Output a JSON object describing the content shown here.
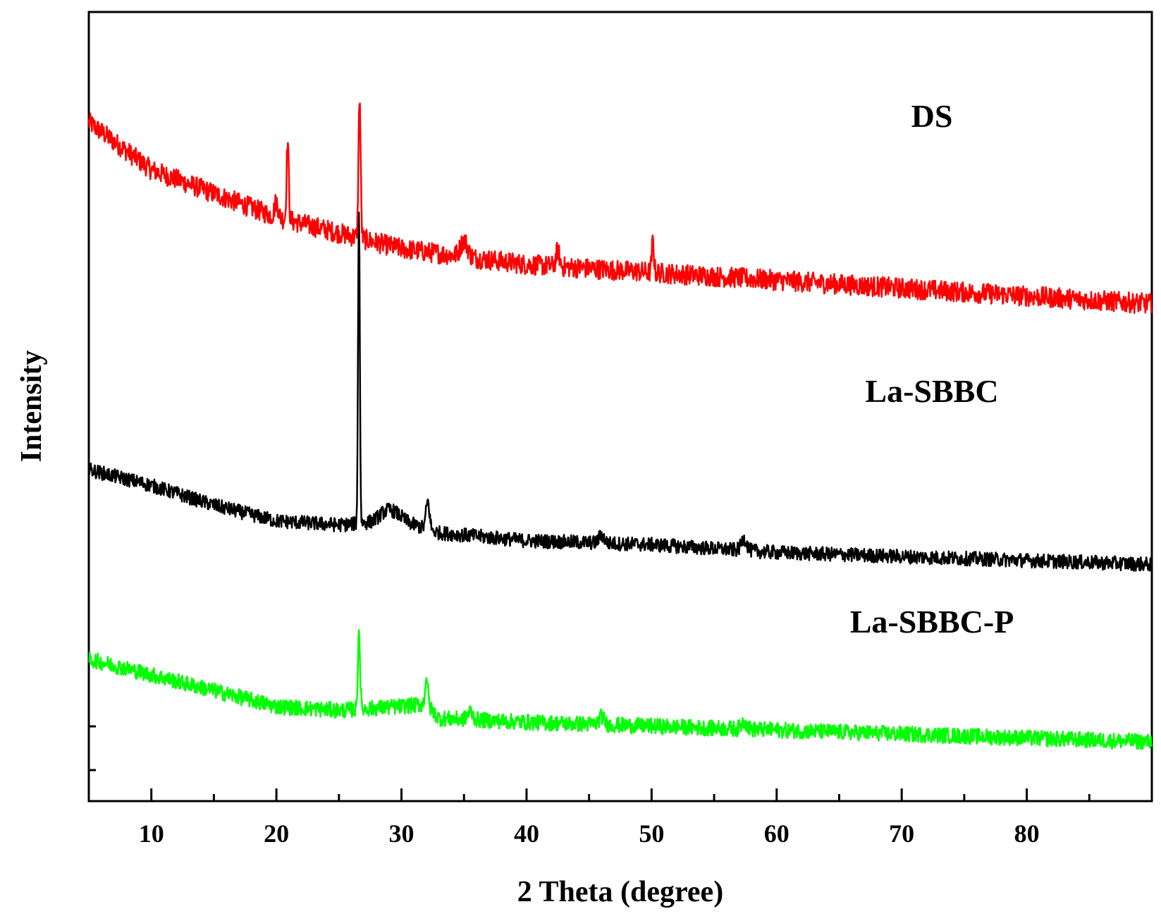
{
  "chart_data": {
    "type": "line",
    "title": "",
    "xlabel": "2 Theta (degree)",
    "ylabel": "Intensity",
    "xlim": [
      5,
      90
    ],
    "x_ticks": [
      10,
      20,
      30,
      40,
      50,
      60,
      70,
      80
    ],
    "x_tick_labels": [
      "10",
      "20",
      "30",
      "40",
      "50",
      "60",
      "70",
      "80"
    ],
    "y_ticks_shown": false,
    "grid": false,
    "legend": "none (series labelled directly on the plot)",
    "series": [
      {
        "name": "DS",
        "color": "#ff0000",
        "baseline": [
          [
            5,
            86
          ],
          [
            10,
            80
          ],
          [
            15,
            77
          ],
          [
            20,
            74
          ],
          [
            25,
            72
          ],
          [
            30,
            70
          ],
          [
            40,
            68
          ],
          [
            50,
            67
          ],
          [
            60,
            66
          ],
          [
            70,
            65
          ],
          [
            80,
            64
          ],
          [
            90,
            63
          ]
        ],
        "peaks": [
          {
            "x": 20.0,
            "height": 2,
            "width": 0.2
          },
          {
            "x": 20.9,
            "height": 10,
            "width": 0.12
          },
          {
            "x": 26.65,
            "height": 18,
            "width": 0.12
          },
          {
            "x": 35.0,
            "height": 2,
            "width": 0.4
          },
          {
            "x": 42.5,
            "height": 2,
            "width": 0.2
          },
          {
            "x": 50.1,
            "height": 4,
            "width": 0.12
          }
        ],
        "noise": 1.3
      },
      {
        "name": "La-SBBC",
        "color": "#000000",
        "baseline": [
          [
            5,
            42
          ],
          [
            10,
            40
          ],
          [
            15,
            37.5
          ],
          [
            20,
            35.5
          ],
          [
            25,
            35
          ],
          [
            30,
            35.5
          ],
          [
            33,
            34
          ],
          [
            40,
            33
          ],
          [
            50,
            32.5
          ],
          [
            60,
            31.5
          ],
          [
            70,
            31
          ],
          [
            80,
            30.5
          ],
          [
            90,
            30
          ]
        ],
        "peaks": [
          {
            "x": 26.6,
            "height": 40,
            "width": 0.1
          },
          {
            "x": 29.0,
            "height": 1.5,
            "width": 1.0
          },
          {
            "x": 32.1,
            "height": 3.5,
            "width": 0.2
          },
          {
            "x": 46.0,
            "height": 1,
            "width": 0.3
          },
          {
            "x": 57.4,
            "height": 1.5,
            "width": 0.3
          }
        ],
        "noise": 0.9
      },
      {
        "name": "La-SBBC-P",
        "color": "#00ff00",
        "baseline": [
          [
            5,
            18
          ],
          [
            10,
            16
          ],
          [
            15,
            14
          ],
          [
            20,
            12
          ],
          [
            25,
            11.5
          ],
          [
            30,
            12
          ],
          [
            32,
            12.3
          ],
          [
            33,
            10.5
          ],
          [
            40,
            10
          ],
          [
            50,
            9.5
          ],
          [
            60,
            9
          ],
          [
            70,
            8.5
          ],
          [
            80,
            8
          ],
          [
            90,
            7.5
          ]
        ],
        "peaks": [
          {
            "x": 26.6,
            "height": 10,
            "width": 0.12
          },
          {
            "x": 32.0,
            "height": 3.5,
            "width": 0.15
          },
          {
            "x": 35.5,
            "height": 1,
            "width": 0.3
          },
          {
            "x": 46.0,
            "height": 1,
            "width": 0.3
          },
          {
            "x": 57.4,
            "height": 1,
            "width": 0.3
          }
        ],
        "noise": 1.0
      }
    ]
  }
}
